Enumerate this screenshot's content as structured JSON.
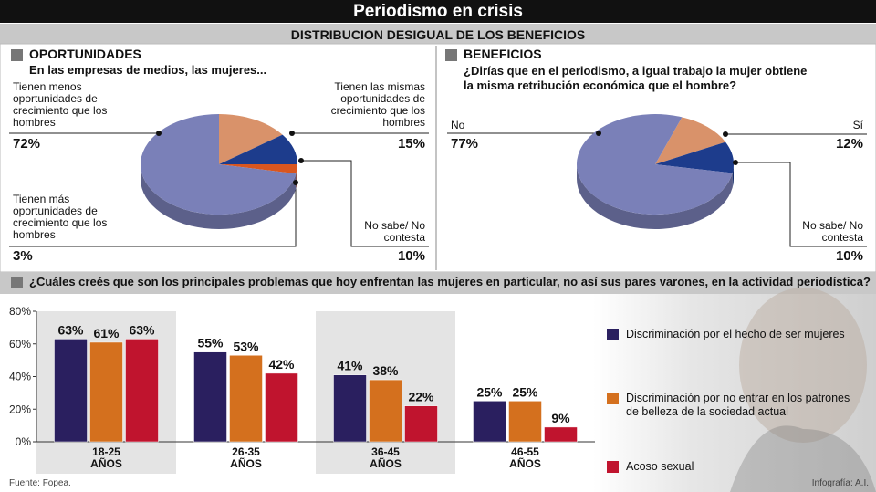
{
  "header": {
    "title": "Periodismo en crisis",
    "subtitle": "DISTRIBUCION DESIGUAL DE LOS BENEFICIOS"
  },
  "chart_data": [
    {
      "type": "pie",
      "title": "OPORTUNIDADES",
      "subtitle": "En las empresas de medios, las mujeres...",
      "categories": [
        "Tienen las mismas oportunidades de crecimiento que los hombres",
        "No sabe/ No contesta",
        "Tienen más oportunidades de crecimiento que los hombres",
        "Tienen menos oportunidades de crecimiento que los hombres"
      ],
      "values": [
        15,
        10,
        3,
        72
      ],
      "value_labels": [
        "15%",
        "10%",
        "3%",
        "72%"
      ],
      "colors": [
        "#d9926a",
        "#1d3c8c",
        "#d9561f",
        "#7a80b8"
      ]
    },
    {
      "type": "pie",
      "title": "BENEFICIOS",
      "subtitle": "¿Dirías que en el periodismo, a igual trabajo la mujer obtiene la misma retribución económica que el hombre?",
      "categories": [
        "Sí",
        "No sabe/ No contesta",
        "No"
      ],
      "values": [
        12,
        10,
        77
      ],
      "value_labels": [
        "12%",
        "10%",
        "77%"
      ],
      "colors": [
        "#d9926a",
        "#1d3c8c",
        "#7a80b8"
      ]
    },
    {
      "type": "bar",
      "title": "¿Cuáles creés que son los principales problemas que hoy enfrentan las mujeres en particular, no así sus pares varones, en la actividad periodística?",
      "categories": [
        "18-25 AÑOS",
        "26-35 AÑOS",
        "36-45 AÑOS",
        "46-55 AÑOS"
      ],
      "series": [
        {
          "name": "Discriminación por el hecho de ser mujeres",
          "color": "#2a1f5f",
          "values": [
            63,
            55,
            41,
            25
          ],
          "value_labels": [
            "63%",
            "55%",
            "41%",
            "25%"
          ]
        },
        {
          "name": "Discriminación por no entrar en los patrones de belleza de la sociedad actual",
          "color": "#d4701e",
          "values": [
            61,
            53,
            38,
            25
          ],
          "value_labels": [
            "61%",
            "53%",
            "38%",
            "25%"
          ]
        },
        {
          "name": "Acoso sexual",
          "color": "#c0142e",
          "values": [
            63,
            42,
            22,
            9
          ],
          "value_labels": [
            "63%",
            "42%",
            "22%",
            "9%"
          ]
        }
      ],
      "ylim": [
        0,
        80
      ],
      "yticks": [
        {
          "value": 0,
          "label": "0%"
        },
        {
          "value": 20,
          "label": "20%"
        },
        {
          "value": 40,
          "label": "40%"
        },
        {
          "value": 60,
          "label": "60%"
        },
        {
          "value": 80,
          "label": "80%"
        }
      ],
      "grid": false
    }
  ],
  "footer": {
    "source": "Fuente: Fopea.",
    "credit": "Infografía: A.I."
  }
}
